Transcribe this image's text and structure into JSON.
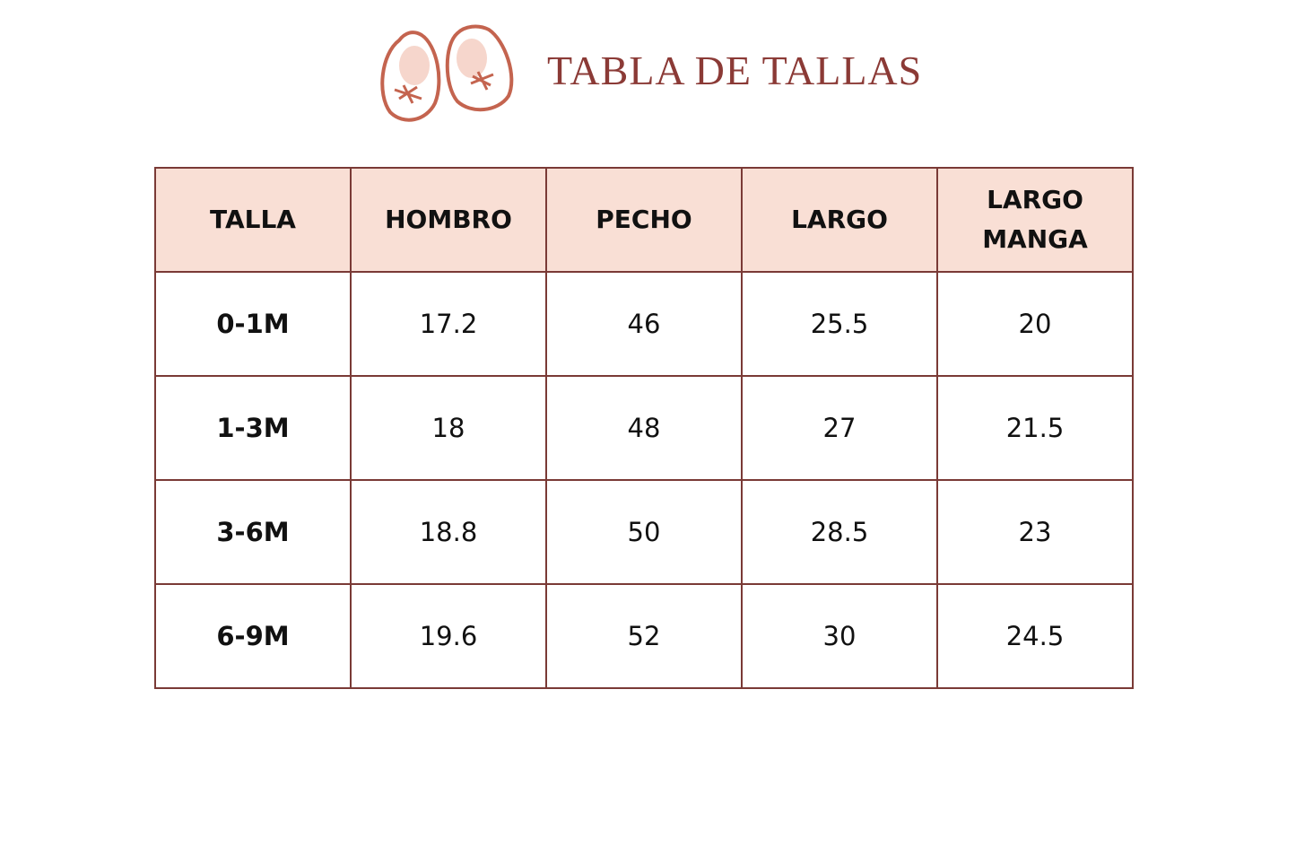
{
  "header": {
    "title": "TABLA DE TALLAS"
  },
  "table": {
    "columns": [
      "TALLA",
      "HOMBRO",
      "PECHO",
      "LARGO",
      "LARGO MANGA"
    ],
    "rows": [
      [
        "0-1M",
        "17.2",
        "46",
        "25.5",
        "20"
      ],
      [
        "1-3M",
        "18",
        "48",
        "27",
        "21.5"
      ],
      [
        "3-6M",
        "18.8",
        "50",
        "28.5",
        "23"
      ],
      [
        "6-9M",
        "19.6",
        "52",
        "30",
        "24.5"
      ]
    ]
  }
}
